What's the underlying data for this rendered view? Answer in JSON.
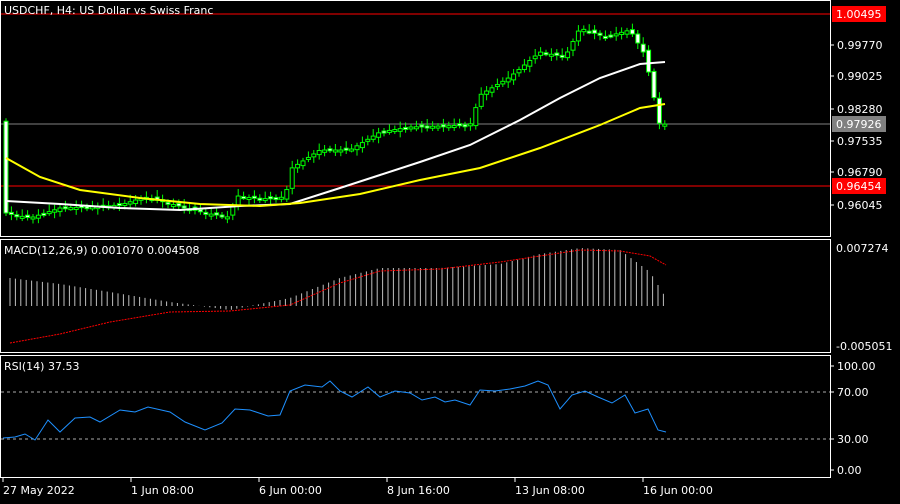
{
  "main_panel": {
    "title": "USDCHF, H4:  US Dollar vs Swiss Franc",
    "price_ticks": [
      "0.99770",
      "0.99025",
      "0.98280",
      "0.97535",
      "0.96790",
      "0.96045"
    ],
    "levels": [
      {
        "label": "1.00495",
        "color": "#ff0000",
        "tag": "red"
      },
      {
        "label": "0.97926",
        "color": "#808080",
        "tag": "gray"
      },
      {
        "label": "0.96454",
        "color": "#ff0000",
        "tag": "red"
      }
    ]
  },
  "macd_panel": {
    "title": "MACD(12,26,9) 0.001070 0.004508",
    "ticks": [
      "0.007274",
      "-0.005051"
    ]
  },
  "rsi_panel": {
    "title": "RSI(14) 37.53",
    "ticks": [
      "100.00",
      "70.00",
      "30.00",
      "0.00"
    ]
  },
  "time_axis": {
    "labels": [
      "27 May 2022",
      "1 Jun 08:00",
      "6 Jun 00:00",
      "8 Jun 16:00",
      "13 Jun 08:00",
      "16 Jun 00:00"
    ]
  },
  "colors": {
    "background": "#000000",
    "grid": "#ffffff",
    "candle": "#00ff00",
    "bull_body": "#000000",
    "bear_body": "#ffffff",
    "ma_fast": "#ffffff",
    "ma_slow": "#ffff00",
    "macd_hist": "#c0c0c0",
    "macd_signal": "#ff0000",
    "rsi_line": "#1e90ff",
    "level_red": "#ff0000",
    "level_gray": "#808080"
  }
}
